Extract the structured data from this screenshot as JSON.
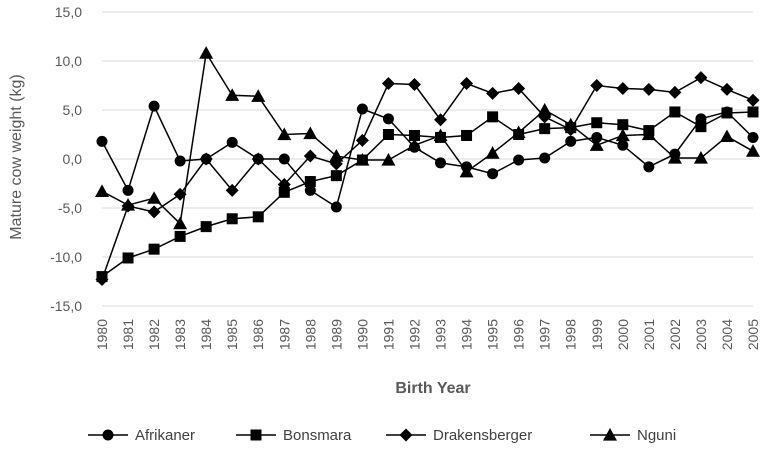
{
  "chart_data": {
    "type": "line",
    "title": "",
    "xlabel": "Birth Year",
    "ylabel": "Mature cow weight (kg)",
    "ylim": [
      -15,
      15
    ],
    "y_ticks": [
      -15,
      -10,
      -5,
      0,
      5,
      10,
      15
    ],
    "y_tick_labels": [
      "-15,0",
      "-10,0",
      "-5,0",
      "0,0",
      "5,0",
      "10,0",
      "15,0"
    ],
    "grid": "horizontal",
    "legend_position": "bottom",
    "line_color": "#000000",
    "grid_color": "#d9d9d9",
    "x": [
      "1980",
      "1981",
      "1982",
      "1983",
      "1984",
      "1985",
      "1986",
      "1987",
      "1988",
      "1989",
      "1990",
      "1991",
      "1992",
      "1993",
      "1994",
      "1995",
      "1996",
      "1997",
      "1998",
      "1999",
      "2000",
      "2001",
      "2002",
      "2003",
      "2004",
      "2005"
    ],
    "series": [
      {
        "name": "Afrikaner",
        "marker": "circle",
        "values": [
          1.8,
          -3.2,
          5.4,
          -0.2,
          0.0,
          1.7,
          0.0,
          0.0,
          -3.2,
          -4.9,
          5.1,
          4.1,
          1.2,
          -0.4,
          -0.8,
          -1.5,
          -0.1,
          0.1,
          1.8,
          2.2,
          1.4,
          -0.8,
          0.5,
          4.1,
          4.8,
          2.2
        ]
      },
      {
        "name": "Bonsmara",
        "marker": "square",
        "values": [
          -12.0,
          -10.1,
          -9.2,
          -7.9,
          -6.9,
          -6.1,
          -5.9,
          -3.4,
          -2.3,
          -1.7,
          -0.1,
          2.5,
          2.4,
          2.2,
          2.4,
          4.3,
          2.5,
          3.1,
          3.2,
          3.7,
          3.5,
          2.9,
          4.8,
          3.3,
          4.7,
          4.8
        ]
      },
      {
        "name": "Drakensberger",
        "marker": "diamond",
        "values": [
          -12.3,
          -4.8,
          -5.4,
          -3.6,
          0.0,
          -3.2,
          0.0,
          -2.6,
          0.3,
          -0.5,
          1.9,
          7.7,
          7.6,
          4.0,
          7.7,
          6.7,
          7.2,
          4.3,
          3.0,
          7.5,
          7.2,
          7.1,
          6.8,
          8.3,
          7.1,
          6.0
        ]
      },
      {
        "name": "Nguni",
        "marker": "triangle",
        "values": [
          -3.3,
          -4.7,
          -4.0,
          -6.6,
          10.8,
          6.5,
          6.4,
          2.5,
          2.6,
          0.3,
          -0.1,
          -0.1,
          1.4,
          2.4,
          -1.3,
          0.6,
          2.7,
          5.0,
          3.5,
          1.4,
          2.4,
          2.5,
          0.1,
          0.1,
          2.3,
          0.8
        ]
      }
    ]
  }
}
